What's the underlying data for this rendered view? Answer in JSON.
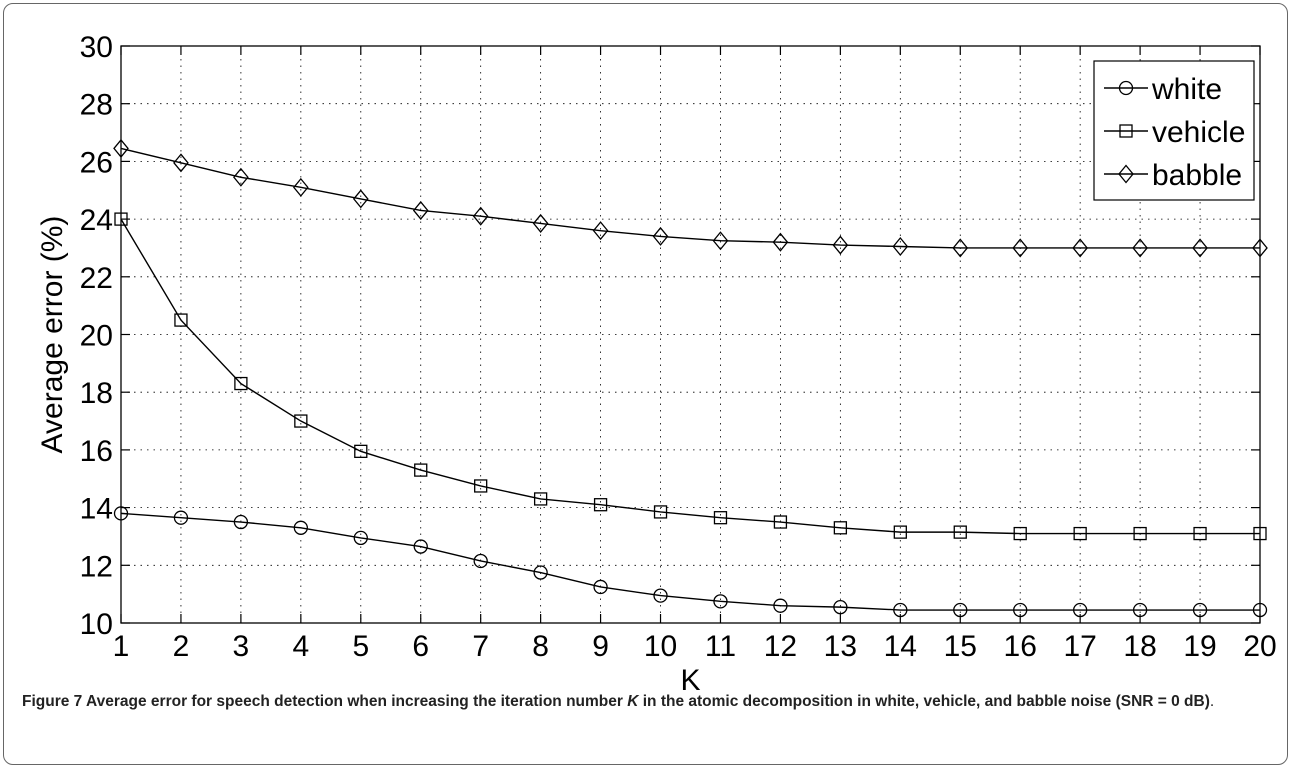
{
  "chart_data": {
    "type": "line",
    "title": "",
    "xlabel": "K",
    "ylabel": "Average error (%)",
    "x": [
      1,
      2,
      3,
      4,
      5,
      6,
      7,
      8,
      9,
      10,
      11,
      12,
      13,
      14,
      15,
      16,
      17,
      18,
      19,
      20
    ],
    "xlim": [
      1,
      20
    ],
    "ylim": [
      10,
      30
    ],
    "yticks": [
      10,
      12,
      14,
      16,
      18,
      20,
      22,
      24,
      26,
      28,
      30
    ],
    "xticks": [
      1,
      2,
      3,
      4,
      5,
      6,
      7,
      8,
      9,
      10,
      11,
      12,
      13,
      14,
      15,
      16,
      17,
      18,
      19,
      20
    ],
    "grid": true,
    "legend_position": "top-right",
    "series": [
      {
        "name": "white",
        "marker": "circle",
        "values": [
          13.8,
          13.65,
          13.5,
          13.3,
          12.95,
          12.65,
          12.15,
          11.75,
          11.25,
          10.95,
          10.75,
          10.6,
          10.55,
          10.45,
          10.45,
          10.45,
          10.45,
          10.45,
          10.45,
          10.45
        ]
      },
      {
        "name": "vehicle",
        "marker": "square",
        "values": [
          24.0,
          20.5,
          18.3,
          17.0,
          15.95,
          15.3,
          14.75,
          14.3,
          14.1,
          13.85,
          13.65,
          13.5,
          13.3,
          13.15,
          13.15,
          13.1,
          13.1,
          13.1,
          13.1,
          13.1
        ]
      },
      {
        "name": "babble",
        "marker": "diamond",
        "values": [
          26.45,
          25.95,
          25.45,
          25.1,
          24.7,
          24.3,
          24.1,
          23.85,
          23.6,
          23.4,
          23.25,
          23.2,
          23.1,
          23.05,
          23.0,
          23.0,
          23.0,
          23.0,
          23.0,
          23.0
        ]
      }
    ]
  },
  "caption": {
    "label": "Figure 7",
    "text_before_k": " Average error for speech detection when increasing the iteration number ",
    "k_symbol": "K",
    "text_after_k": " in the atomic decomposition in white, vehicle, and babble noise (SNR = 0 dB)",
    "period": "."
  },
  "colors": {
    "line": "#000000",
    "grid": "#000000",
    "frame": "#666666"
  }
}
